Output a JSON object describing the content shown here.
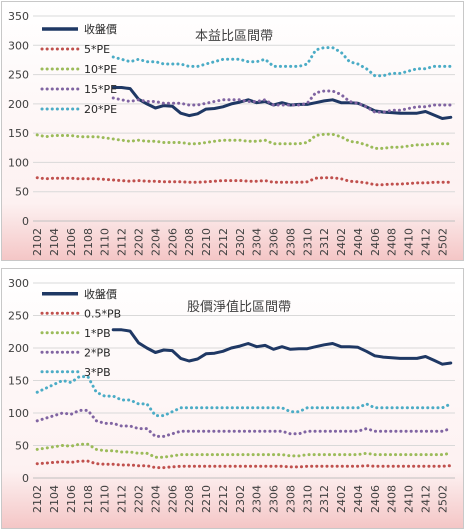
{
  "colors": {
    "price": "#1F3864",
    "band1": "#C0504D",
    "band2": "#9BBB59",
    "band3": "#8064A2",
    "band4": "#4BACC6",
    "bg_light": "#FFFFFF",
    "bg_pink": "#F4C6C6",
    "grid": "#D9D9D9"
  },
  "chart_data": [
    {
      "type": "line",
      "title": "本益比區間帶",
      "xlabel": "",
      "ylabel": "",
      "ylim": [
        0,
        350
      ],
      "yticks": [
        0,
        50,
        100,
        150,
        200,
        250,
        300,
        350
      ],
      "grid": true,
      "legend_position": "top-left",
      "categories": [
        "2102",
        "2103",
        "2104",
        "2105",
        "2106",
        "2107",
        "2108",
        "2109",
        "2110",
        "2111",
        "2112",
        "2201",
        "2202",
        "2203",
        "2204",
        "2205",
        "2206",
        "2207",
        "2208",
        "2209",
        "2210",
        "2211",
        "2212",
        "2301",
        "2302",
        "2303",
        "2304",
        "2305",
        "2306",
        "2307",
        "2308",
        "2309",
        "2310",
        "2311",
        "2312",
        "2401",
        "2402",
        "2403",
        "2404",
        "2405",
        "2406",
        "2407",
        "2408",
        "2409",
        "2410",
        "2411",
        "2412",
        "2501",
        "2502",
        "2503"
      ],
      "tick_labels": [
        "2102",
        "2104",
        "2106",
        "2108",
        "2110",
        "2112",
        "2202",
        "2204",
        "2206",
        "2208",
        "2210",
        "2212",
        "2302",
        "2304",
        "2306",
        "2308",
        "2310",
        "2312",
        "2402",
        "2404",
        "2406",
        "2408",
        "2410",
        "2412",
        "2502"
      ],
      "series": [
        {
          "name": "收盤價",
          "style": "solid",
          "color_key": "price",
          "values": [
            null,
            null,
            null,
            null,
            null,
            null,
            null,
            null,
            null,
            228,
            228,
            226,
            208,
            200,
            193,
            197,
            196,
            184,
            180,
            183,
            191,
            192,
            195,
            200,
            203,
            207,
            202,
            204,
            198,
            202,
            198,
            199,
            199,
            202,
            205,
            207,
            202,
            202,
            201,
            195,
            188,
            186,
            185,
            184,
            184,
            184,
            187,
            181,
            175,
            177
          ]
        },
        {
          "name": "5*PE",
          "style": "dotted",
          "color_key": "band1",
          "values": [
            74,
            72,
            73,
            73,
            73,
            72,
            72,
            72,
            71,
            70,
            69,
            68,
            69,
            68,
            68,
            67,
            67,
            67,
            66,
            66,
            67,
            68,
            69,
            69,
            69,
            68,
            68,
            69,
            66,
            66,
            66,
            66,
            67,
            73,
            74,
            74,
            72,
            68,
            67,
            65,
            62,
            62,
            63,
            63,
            64,
            65,
            65,
            66,
            66,
            66
          ]
        },
        {
          "name": "10*PE",
          "style": "dotted",
          "color_key": "band2",
          "values": [
            147,
            144,
            146,
            146,
            146,
            144,
            144,
            144,
            142,
            140,
            138,
            136,
            138,
            136,
            136,
            134,
            134,
            134,
            132,
            132,
            134,
            136,
            138,
            138,
            138,
            136,
            136,
            138,
            132,
            132,
            132,
            132,
            134,
            146,
            148,
            148,
            144,
            136,
            134,
            130,
            124,
            124,
            126,
            126,
            128,
            130,
            130,
            132,
            132,
            132
          ]
        },
        {
          "name": "15*PE",
          "style": "dotted",
          "color_key": "band3",
          "values": [
            null,
            null,
            null,
            null,
            null,
            null,
            null,
            null,
            null,
            210,
            207,
            204,
            207,
            204,
            204,
            201,
            201,
            201,
            198,
            198,
            201,
            204,
            207,
            207,
            207,
            204,
            204,
            207,
            198,
            198,
            198,
            198,
            201,
            219,
            222,
            222,
            216,
            204,
            201,
            195,
            186,
            186,
            189,
            189,
            192,
            195,
            195,
            198,
            198,
            198
          ]
        },
        {
          "name": "20*PE",
          "style": "dotted",
          "color_key": "band4",
          "values": [
            null,
            null,
            null,
            null,
            null,
            null,
            null,
            null,
            null,
            280,
            276,
            272,
            276,
            272,
            272,
            268,
            268,
            268,
            264,
            264,
            268,
            272,
            276,
            276,
            276,
            272,
            272,
            276,
            264,
            264,
            264,
            264,
            268,
            292,
            296,
            296,
            288,
            272,
            268,
            260,
            248,
            248,
            252,
            252,
            256,
            260,
            260,
            264,
            264,
            264
          ]
        }
      ]
    },
    {
      "type": "line",
      "title": "股價淨值比區間帶",
      "xlabel": "",
      "ylabel": "",
      "ylim": [
        0,
        300
      ],
      "yticks": [
        0,
        50,
        100,
        150,
        200,
        250,
        300
      ],
      "grid": true,
      "legend_position": "top-left",
      "categories": [
        "2102",
        "2103",
        "2104",
        "2105",
        "2106",
        "2107",
        "2108",
        "2109",
        "2110",
        "2111",
        "2112",
        "2201",
        "2202",
        "2203",
        "2204",
        "2205",
        "2206",
        "2207",
        "2208",
        "2209",
        "2210",
        "2211",
        "2212",
        "2301",
        "2302",
        "2303",
        "2304",
        "2305",
        "2306",
        "2307",
        "2308",
        "2309",
        "2310",
        "2311",
        "2312",
        "2401",
        "2402",
        "2403",
        "2404",
        "2405",
        "2406",
        "2407",
        "2408",
        "2409",
        "2410",
        "2411",
        "2412",
        "2501",
        "2502",
        "2503"
      ],
      "tick_labels": [
        "2102",
        "2104",
        "2106",
        "2108",
        "2110",
        "2112",
        "2202",
        "2204",
        "2206",
        "2208",
        "2210",
        "2212",
        "2302",
        "2304",
        "2306",
        "2308",
        "2310",
        "2312",
        "2402",
        "2404",
        "2406",
        "2408",
        "2410",
        "2412",
        "2502"
      ],
      "series": [
        {
          "name": "收盤價",
          "style": "solid",
          "color_key": "price",
          "values": [
            null,
            null,
            null,
            null,
            null,
            null,
            null,
            null,
            null,
            228,
            228,
            226,
            208,
            200,
            193,
            197,
            196,
            184,
            180,
            183,
            191,
            192,
            195,
            200,
            203,
            207,
            202,
            204,
            198,
            202,
            198,
            199,
            199,
            202,
            205,
            207,
            202,
            202,
            201,
            195,
            188,
            186,
            185,
            184,
            184,
            184,
            187,
            181,
            175,
            177
          ]
        },
        {
          "name": "0.5*PB",
          "style": "dotted",
          "color_key": "band1",
          "values": [
            22,
            23,
            24,
            25,
            24,
            26,
            26,
            22,
            21,
            21,
            20,
            20,
            19,
            19,
            16,
            16,
            17,
            18,
            18,
            18,
            18,
            18,
            18,
            18,
            18,
            18,
            18,
            18,
            18,
            18,
            17,
            17,
            18,
            18,
            18,
            18,
            18,
            18,
            18,
            19,
            18,
            18,
            18,
            18,
            18,
            18,
            18,
            18,
            18,
            19
          ]
        },
        {
          "name": "1*PB",
          "style": "dotted",
          "color_key": "band2",
          "values": [
            44,
            46,
            48,
            50,
            49,
            52,
            52,
            44,
            42,
            42,
            40,
            40,
            38,
            38,
            32,
            32,
            34,
            36,
            36,
            36,
            36,
            36,
            36,
            36,
            36,
            36,
            36,
            36,
            36,
            36,
            34,
            34,
            36,
            36,
            36,
            36,
            36,
            36,
            36,
            38,
            36,
            36,
            36,
            36,
            36,
            36,
            36,
            36,
            36,
            38
          ]
        },
        {
          "name": "2*PB",
          "style": "dotted",
          "color_key": "band3",
          "values": [
            88,
            92,
            96,
            100,
            98,
            104,
            104,
            88,
            84,
            84,
            80,
            80,
            76,
            76,
            64,
            64,
            68,
            72,
            72,
            72,
            72,
            72,
            72,
            72,
            72,
            72,
            72,
            72,
            72,
            72,
            68,
            68,
            72,
            72,
            72,
            72,
            72,
            72,
            72,
            76,
            72,
            72,
            72,
            72,
            72,
            72,
            72,
            72,
            72,
            76
          ]
        },
        {
          "name": "3*PB",
          "style": "dotted",
          "color_key": "band4",
          "values": [
            132,
            138,
            144,
            150,
            147,
            156,
            156,
            132,
            126,
            126,
            120,
            120,
            114,
            114,
            96,
            96,
            102,
            108,
            108,
            108,
            108,
            108,
            108,
            108,
            108,
            108,
            108,
            108,
            108,
            108,
            102,
            102,
            108,
            108,
            108,
            108,
            108,
            108,
            108,
            114,
            108,
            108,
            108,
            108,
            108,
            108,
            108,
            108,
            108,
            114
          ]
        }
      ]
    }
  ]
}
